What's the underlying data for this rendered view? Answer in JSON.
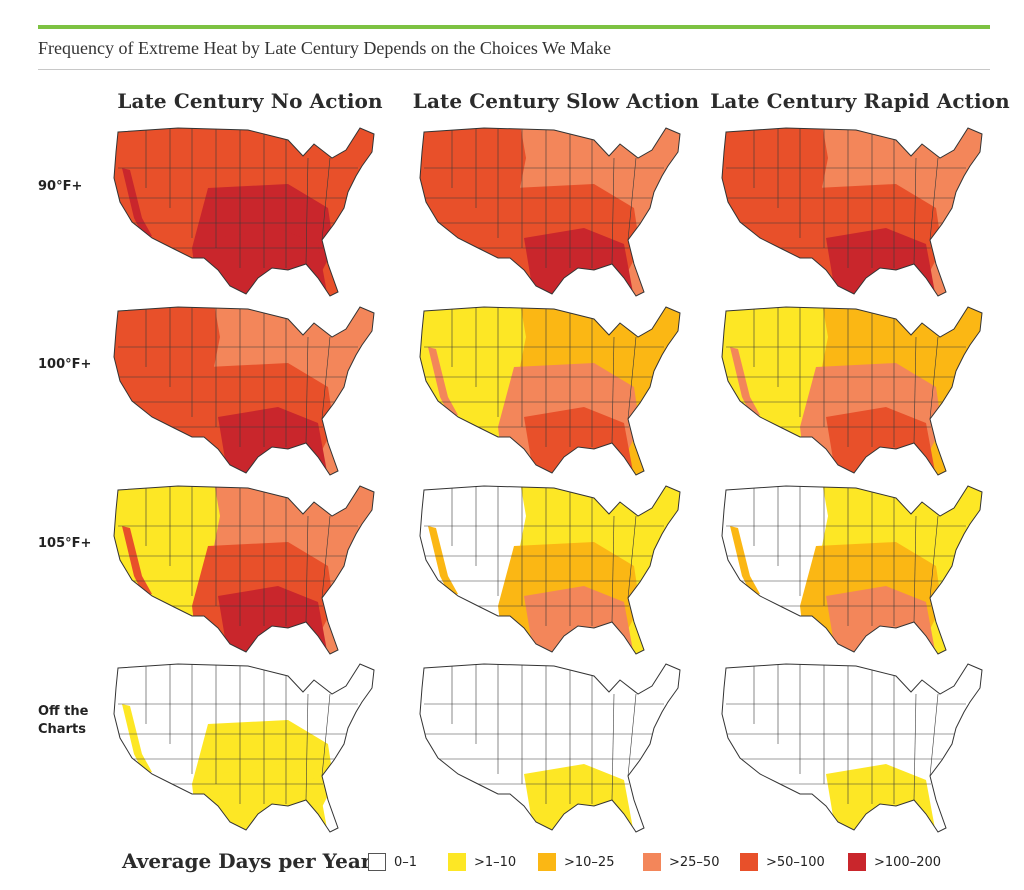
{
  "title": "Frequency of Extreme Heat by Late Century Depends on the Choices We Make",
  "columns": [
    "Late Century No Action",
    "Late Century Slow Action",
    "Late Century Rapid Action"
  ],
  "rows": [
    {
      "label": "90°F+"
    },
    {
      "label": "100°F+"
    },
    {
      "label": "105°F+"
    },
    {
      "label_line1": "Off the",
      "label_line2": "Charts"
    }
  ],
  "legend": {
    "title": "Average Days per Year",
    "items": [
      {
        "label": "0–1",
        "color": "#ffffff"
      },
      {
        "label": ">1–10",
        "color": "#fde725"
      },
      {
        "label": ">10–25",
        "color": "#fbb714"
      },
      {
        "label": ">25–50",
        "color": "#f3865a"
      },
      {
        "label": ">50–100",
        "color": "#e8502a"
      },
      {
        "label": ">100–200",
        "color": "#c9262c"
      }
    ]
  },
  "map_levels": [
    [
      [
        4,
        4,
        5,
        5
      ],
      [
        4,
        3,
        4,
        5
      ],
      [
        4,
        3,
        4,
        5
      ]
    ],
    [
      [
        4,
        3,
        4,
        5
      ],
      [
        1,
        2,
        3,
        4
      ],
      [
        1,
        2,
        3,
        4
      ]
    ],
    [
      [
        1,
        3,
        4,
        5
      ],
      [
        0,
        1,
        2,
        3
      ],
      [
        0,
        1,
        2,
        3
      ]
    ],
    [
      [
        0,
        0,
        1,
        1
      ],
      [
        0,
        0,
        0,
        1
      ],
      [
        0,
        0,
        0,
        1
      ]
    ]
  ]
}
